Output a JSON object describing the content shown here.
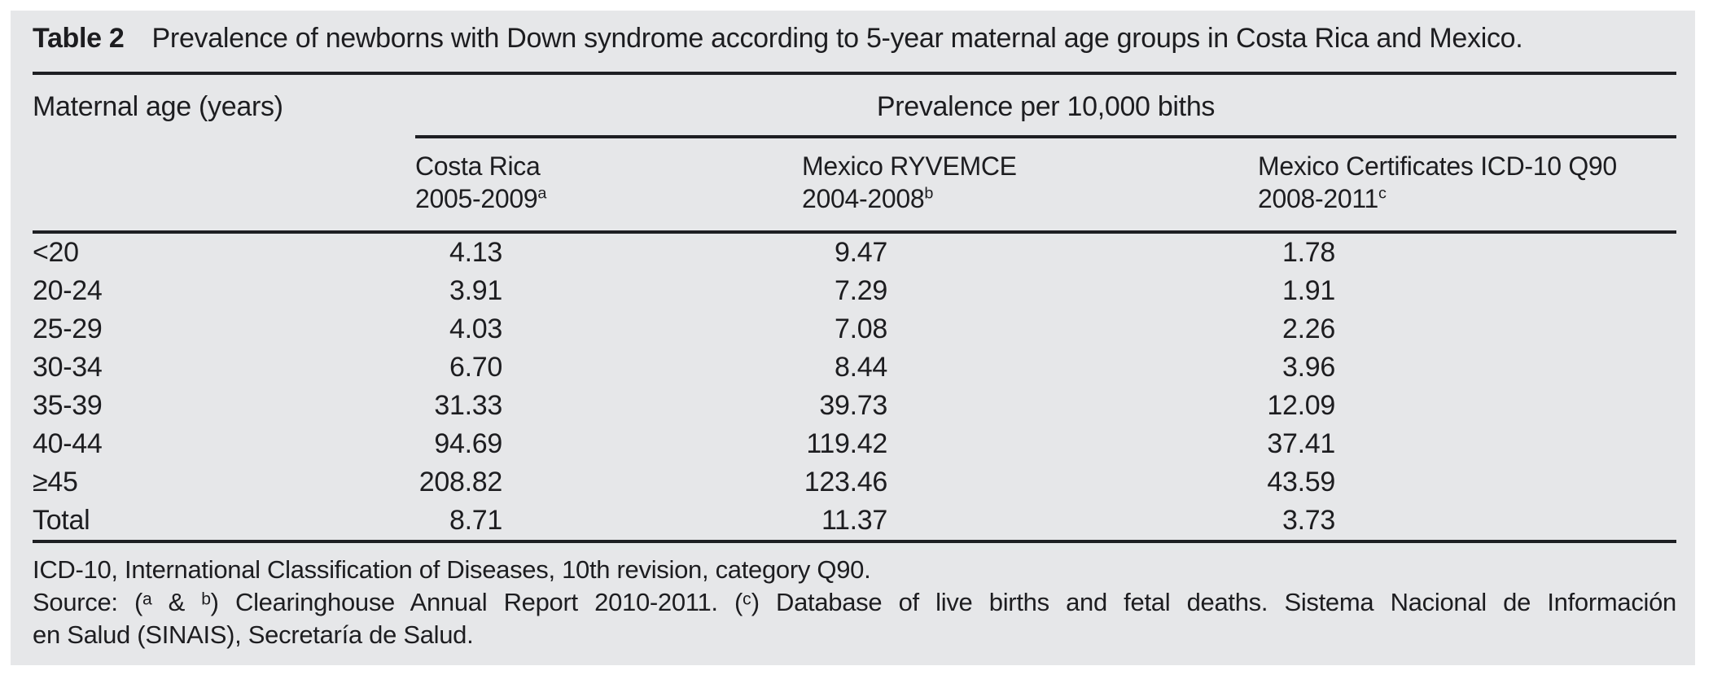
{
  "table": {
    "label": "Table 2",
    "caption": "Prevalence of newborns with Down syndrome according to 5-year maternal age groups in Costa Rica and Mexico.",
    "row_header": "Maternal age (years)",
    "group_header": "Prevalence per 10,000 biths",
    "columns": [
      {
        "name": "Costa Rica",
        "period": "2005-2009",
        "footnote_mark": "a"
      },
      {
        "name": "Mexico RYVEMCE",
        "period": "2004-2008",
        "footnote_mark": "b"
      },
      {
        "name": "Mexico Certificates ICD-10 Q90",
        "period": "2008-2011",
        "footnote_mark": "c"
      }
    ],
    "rows": [
      {
        "age": "<20",
        "values": [
          "4.13",
          "9.47",
          "1.78"
        ]
      },
      {
        "age": "20-24",
        "values": [
          "3.91",
          "7.29",
          "1.91"
        ]
      },
      {
        "age": "25-29",
        "values": [
          "4.03",
          "7.08",
          "2.26"
        ]
      },
      {
        "age": "30-34",
        "values": [
          "6.70",
          "8.44",
          "3.96"
        ]
      },
      {
        "age": "35-39",
        "values": [
          "31.33",
          "39.73",
          "12.09"
        ]
      },
      {
        "age": "40-44",
        "values": [
          "94.69",
          "119.42",
          "37.41"
        ]
      },
      {
        "age": "≥45",
        "values": [
          "208.82",
          "123.46",
          "43.59"
        ]
      },
      {
        "age": "Total",
        "values": [
          "8.71",
          "11.37",
          "3.73"
        ]
      }
    ],
    "footnotes": {
      "abbreviation": "ICD-10, International Classification of Diseases, 10th revision, category Q90.",
      "source_line1": "Source: (ᵃ & ᵇ) Clearinghouse Annual Report 2010-2011. (ᶜ) Database of live births and fetal deaths. Sistema Nacional de Información",
      "source_line2": "en Salud (SINAIS), Secretaría de Salud."
    },
    "colors": {
      "panel_background": "#e6e7e9",
      "text": "#1d1d20",
      "rule": "#1e1f23"
    }
  }
}
